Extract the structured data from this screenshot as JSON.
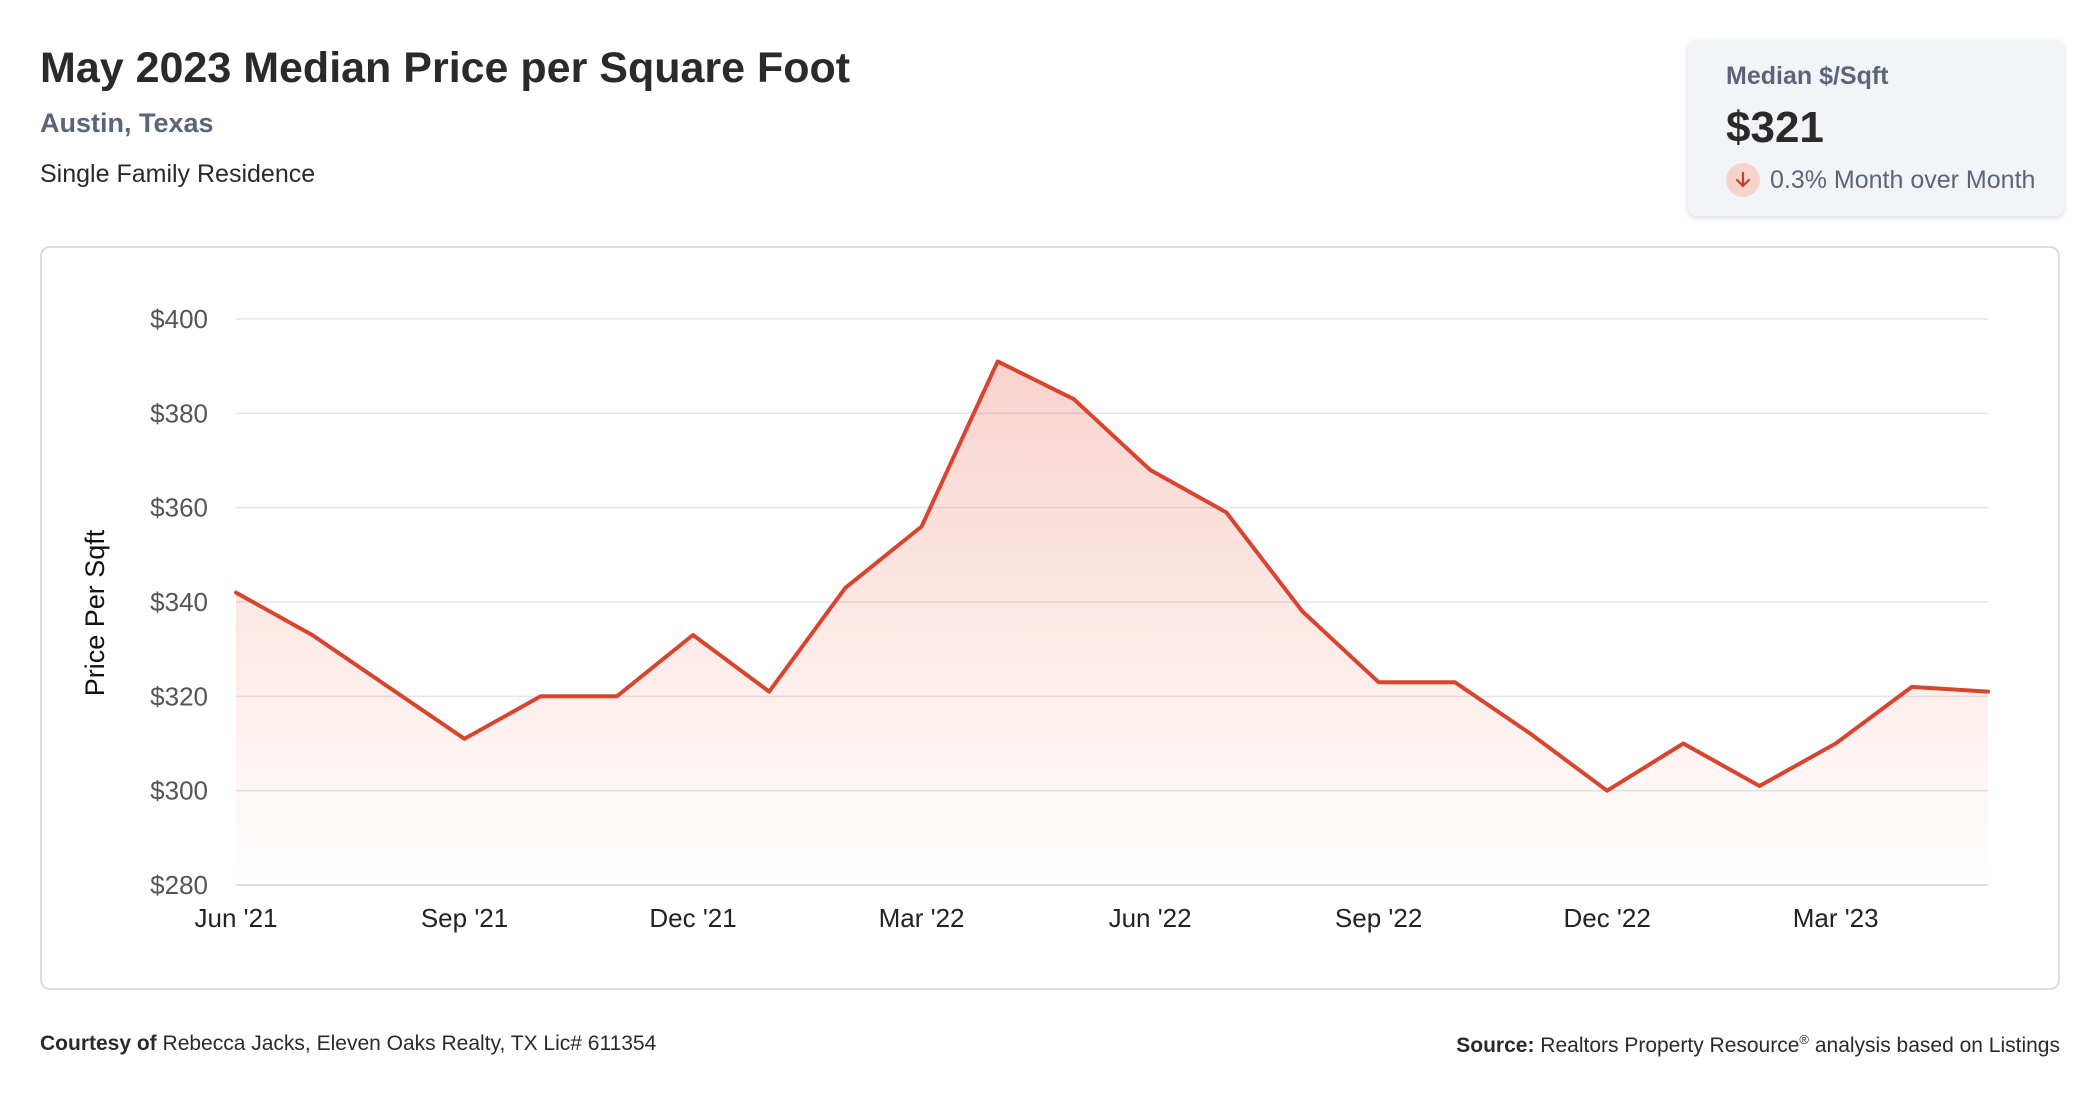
{
  "header": {
    "title": "May 2023 Median Price per Square Foot",
    "location": "Austin, Texas",
    "property_type": "Single Family Residence"
  },
  "stat_card": {
    "label": "Median $/Sqft",
    "value": "$321",
    "change_text": "0.3% Month over Month",
    "direction_icon": "arrow-down-icon",
    "accent_color": "#c2412d",
    "accent_bg": "#f6d3cd"
  },
  "footer": {
    "courtesy_label": "Courtesy of",
    "courtesy_text": "Rebecca Jacks, Eleven Oaks Realty, TX Lic# 611354",
    "source_label": "Source:",
    "source_text_1": "Realtors Property Resource",
    "source_sup": "®",
    "source_text_2": " analysis based on Listings"
  },
  "chart_data": {
    "type": "area",
    "title": "",
    "ylabel": "Price Per Sqft",
    "xlabel": "",
    "ylim": [
      280,
      400
    ],
    "yticks": [
      280,
      300,
      320,
      340,
      360,
      380,
      400
    ],
    "ytick_labels": [
      "$280",
      "$300",
      "$320",
      "$340",
      "$360",
      "$380",
      "$400"
    ],
    "xtick_labels": [
      {
        "index": 0,
        "label": "Jun '21"
      },
      {
        "index": 3,
        "label": "Sep '21"
      },
      {
        "index": 6,
        "label": "Dec '21"
      },
      {
        "index": 9,
        "label": "Mar '22"
      },
      {
        "index": 12,
        "label": "Jun '22"
      },
      {
        "index": 15,
        "label": "Sep '22"
      },
      {
        "index": 18,
        "label": "Dec '22"
      },
      {
        "index": 21,
        "label": "Mar '23"
      }
    ],
    "x": [
      "2021-06",
      "2021-07",
      "2021-08",
      "2021-09",
      "2021-10",
      "2021-11",
      "2021-12",
      "2022-01",
      "2022-02",
      "2022-03",
      "2022-04",
      "2022-05",
      "2022-06",
      "2022-07",
      "2022-08",
      "2022-09",
      "2022-10",
      "2022-11",
      "2022-12",
      "2023-01",
      "2023-02",
      "2023-03",
      "2023-04",
      "2023-05"
    ],
    "values": [
      342,
      333,
      322,
      311,
      320,
      320,
      333,
      321,
      343,
      356,
      391,
      383,
      368,
      359,
      338,
      323,
      323,
      312,
      300,
      310,
      301,
      310,
      322,
      321
    ],
    "line_color": "#d9442f",
    "grid": true,
    "legend": "none"
  }
}
